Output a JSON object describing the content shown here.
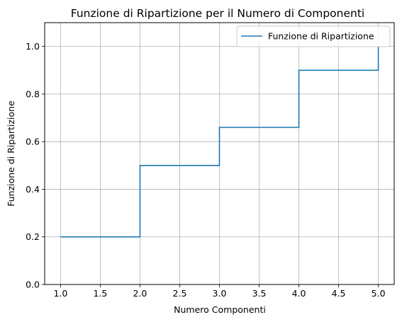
{
  "chart_data": {
    "type": "line",
    "step": "post",
    "title": "Funzione di Ripartizione per il Numero di Componenti",
    "xlabel": "Numero Componenti",
    "ylabel": "Funzione di Ripartizione",
    "xlim": [
      0.8,
      5.2
    ],
    "ylim": [
      0.0,
      1.1
    ],
    "xticks": [
      1.0,
      1.5,
      2.0,
      2.5,
      3.0,
      3.5,
      4.0,
      4.5,
      5.0
    ],
    "xtick_labels": [
      "1.0",
      "1.5",
      "2.0",
      "2.5",
      "3.0",
      "3.5",
      "4.0",
      "4.5",
      "5.0"
    ],
    "yticks": [
      0.0,
      0.2,
      0.4,
      0.6,
      0.8,
      1.0
    ],
    "ytick_labels": [
      "0.0",
      "0.2",
      "0.4",
      "0.6",
      "0.8",
      "1.0"
    ],
    "grid": true,
    "legend_position": "top-right",
    "series": [
      {
        "name": "Funzione di Ripartizione",
        "color": "#1f77b4",
        "x": [
          1,
          2,
          3,
          4,
          5
        ],
        "y": [
          0.2,
          0.5,
          0.66,
          0.9,
          1.0
        ]
      }
    ]
  }
}
